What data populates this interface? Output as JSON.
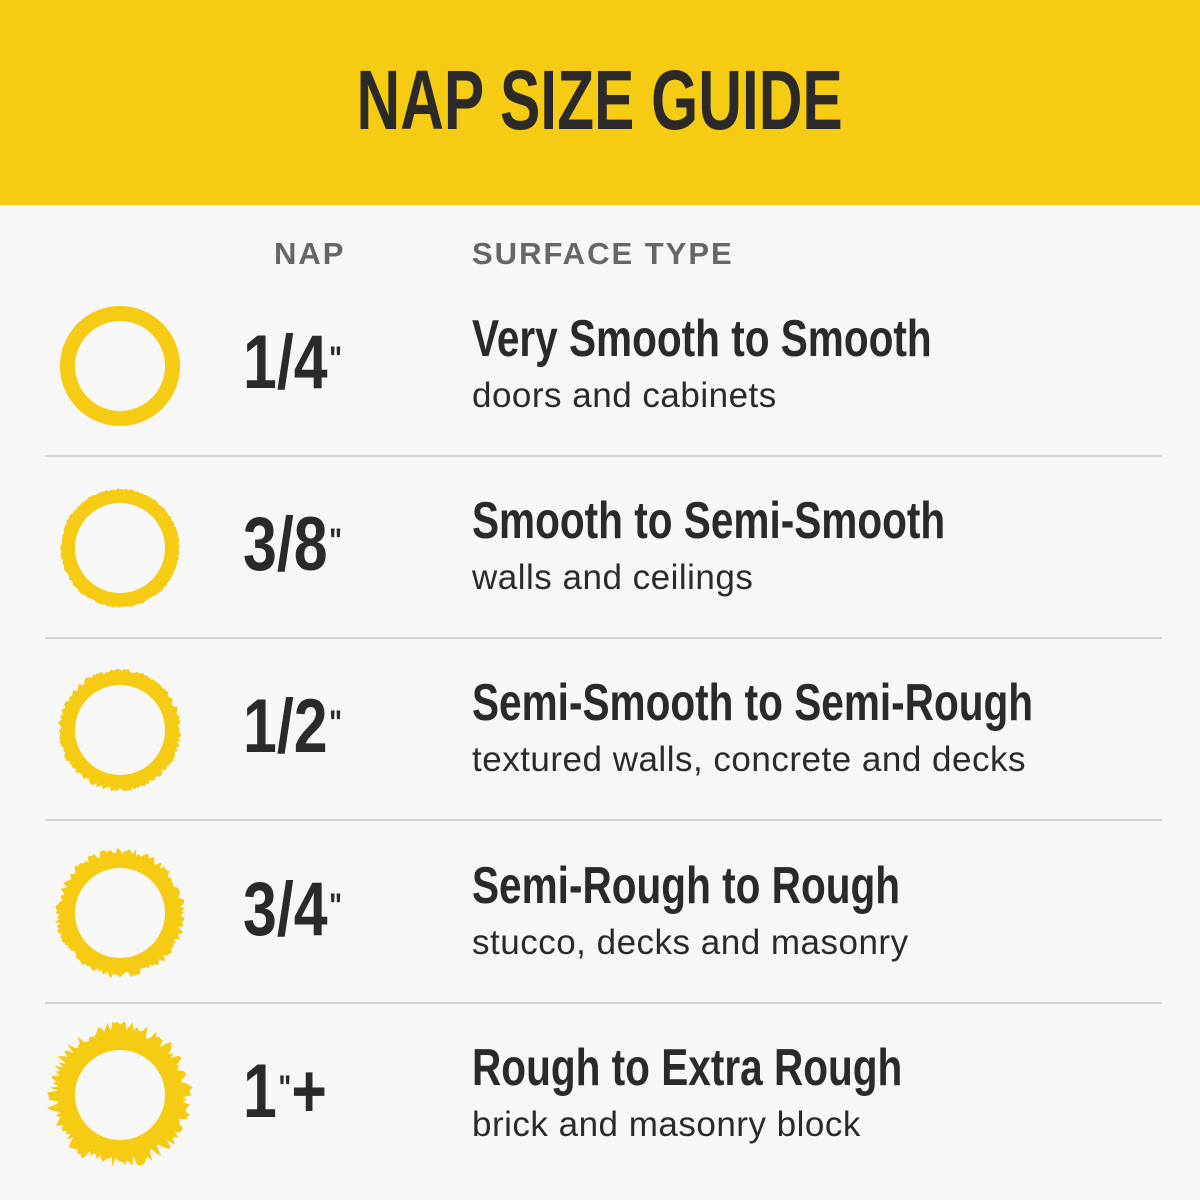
{
  "title": "NAP SIZE GUIDE",
  "columns": {
    "nap": "NAP",
    "surface": "SURFACE TYPE"
  },
  "colors": {
    "accent": "#f5cb14",
    "text": "#2b2a29",
    "header_text": "#666666",
    "background": "#f7f7f7"
  },
  "rows": [
    {
      "nap": "1/4",
      "mark": "\"",
      "suffix": "",
      "surface": "Very Smooth to Smooth",
      "uses": "doors and cabinets"
    },
    {
      "nap": "3/8",
      "mark": "\"",
      "suffix": "",
      "surface": "Smooth to Semi-Smooth",
      "uses": "walls and ceilings"
    },
    {
      "nap": "1/2",
      "mark": "\"",
      "suffix": "",
      "surface": "Semi-Smooth to Semi-Rough",
      "uses": "textured walls, concrete and decks"
    },
    {
      "nap": "3/4",
      "mark": "\"",
      "suffix": "",
      "surface": "Semi-Rough to Rough",
      "uses": "stucco, decks and masonry"
    },
    {
      "nap": "1",
      "mark": "\"",
      "suffix": "+",
      "surface": "Rough to Extra Rough",
      "uses": "brick and masonry block"
    }
  ]
}
